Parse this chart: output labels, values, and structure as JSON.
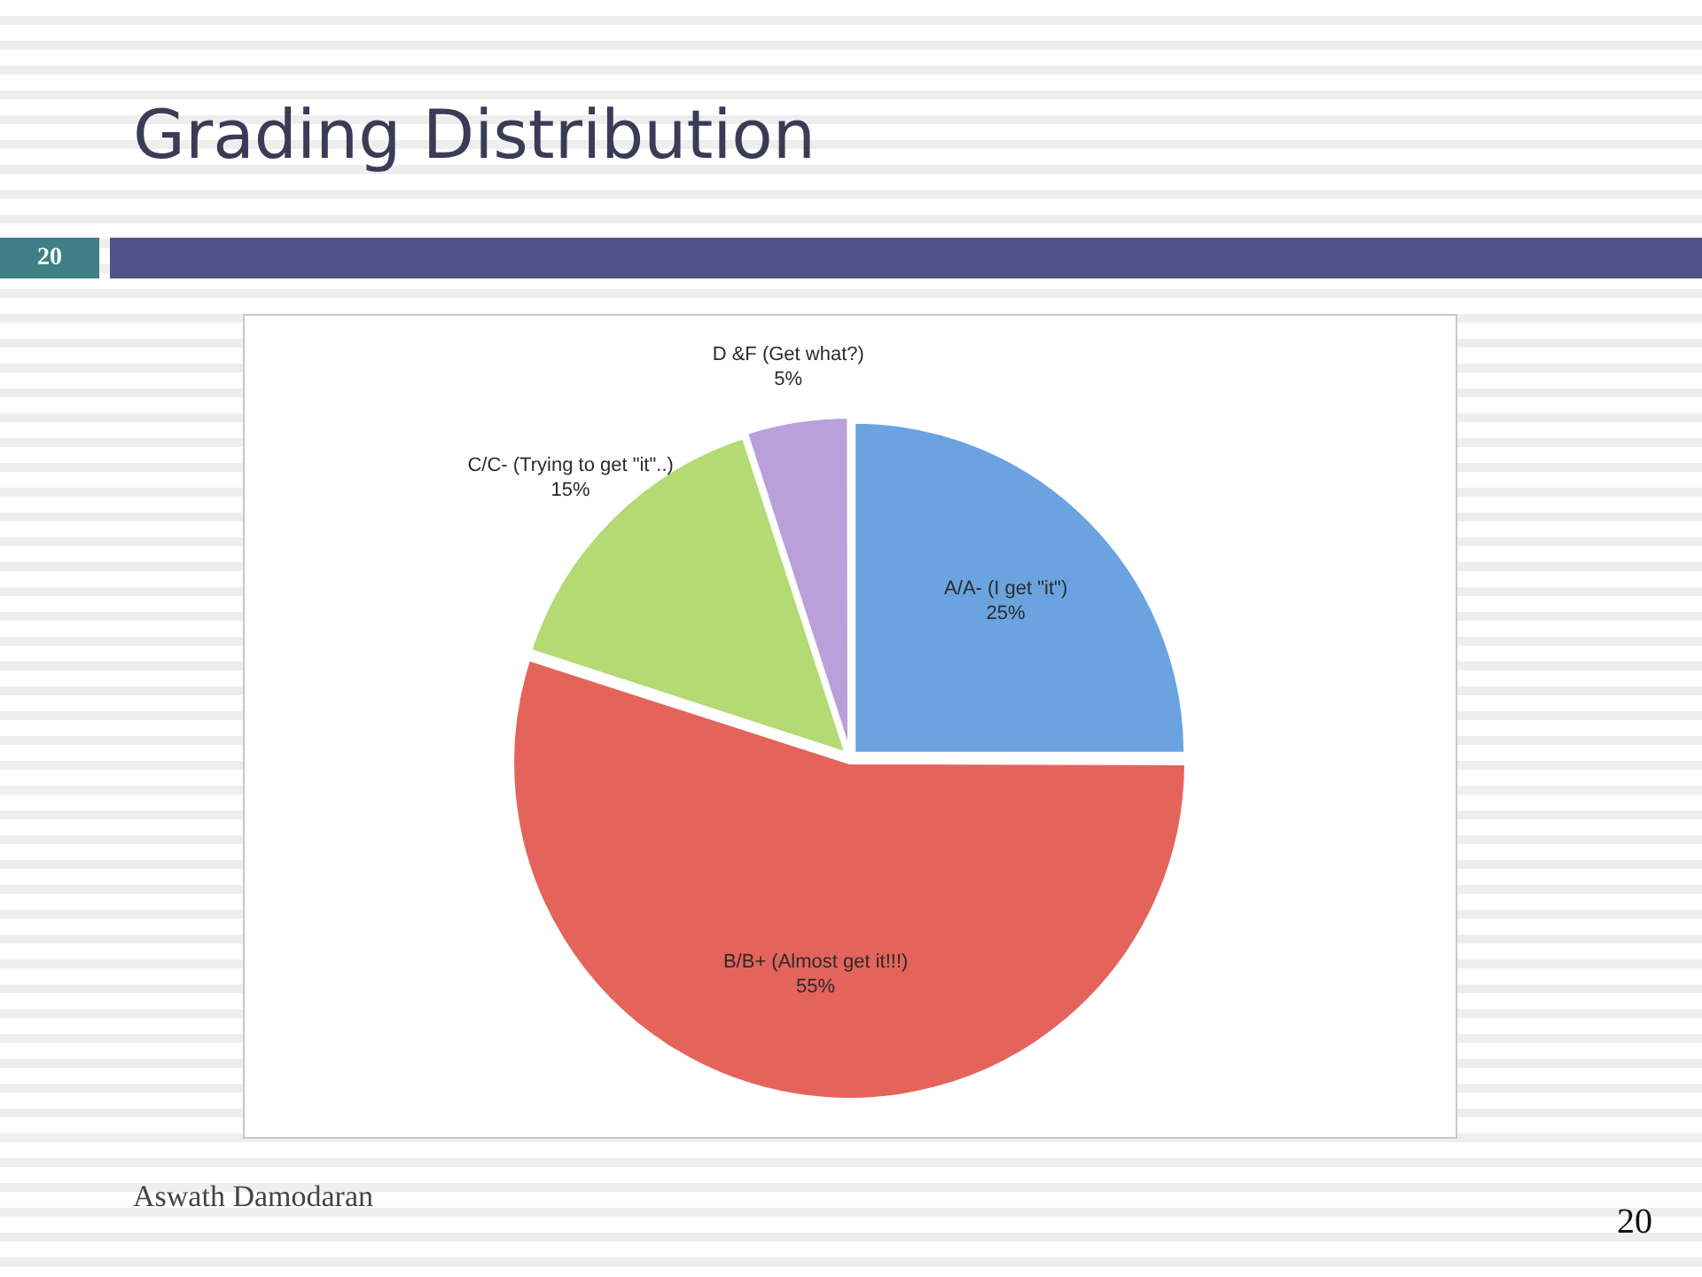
{
  "chart_data": {
    "type": "pie",
    "title": "Grading Distribution",
    "categories": [
      "A/A- (I get \"it\")",
      "B/B+ (Almost get it!!!)",
      "C/C- (Trying to get \"it\"..)",
      "D &F (Get what?)"
    ],
    "values": [
      25,
      55,
      15,
      5
    ],
    "value_labels": [
      "25%",
      "55%",
      "15%",
      "5%"
    ],
    "colors": [
      "#6aa3e0",
      "#e4645c",
      "#b4da74",
      "#b9a0db"
    ],
    "annotations": [
      "20",
      "Aswath Damodaran",
      "20"
    ]
  }
}
